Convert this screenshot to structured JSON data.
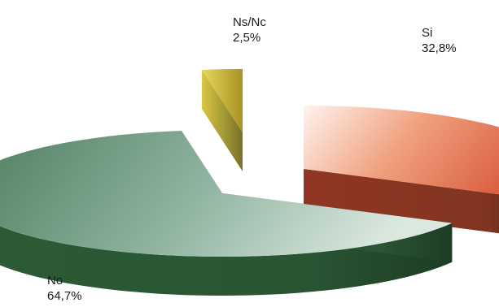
{
  "chart_data": {
    "type": "pie",
    "style": "3d-exploded",
    "title": "",
    "slices": [
      {
        "label": "Si",
        "value": 32.8,
        "value_label": "32,8%",
        "color": "#d8573a"
      },
      {
        "label": "No",
        "value": 64.7,
        "value_label": "64,7%",
        "color": "#4f7f60"
      },
      {
        "label": "Ns/Nc",
        "value": 2.5,
        "value_label": "2,5%",
        "color": "#c9b62a"
      }
    ],
    "legend": "none"
  }
}
